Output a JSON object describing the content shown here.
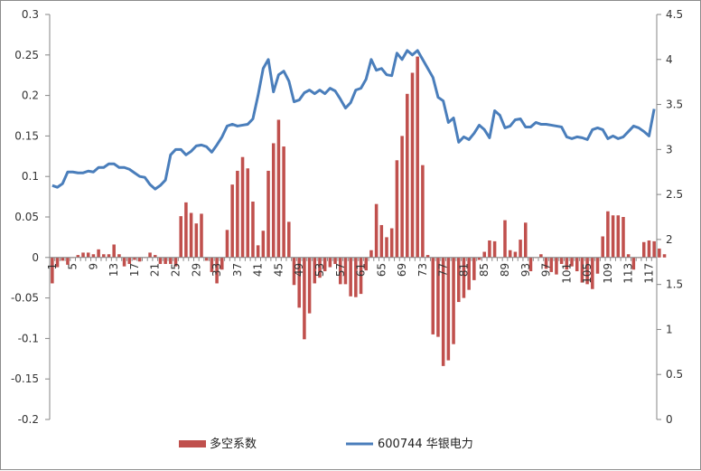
{
  "chart_data": {
    "type": "bar",
    "title": "",
    "xlabel": "",
    "ylabel": "",
    "legend_position": "bottom",
    "grid": false,
    "x_tick_labels": [
      "1",
      "5",
      "9",
      "13",
      "17",
      "21",
      "25",
      "29",
      "33",
      "37",
      "41",
      "45",
      "49",
      "53",
      "57",
      "61",
      "65",
      "69",
      "73",
      "77",
      "81",
      "85",
      "89",
      "93",
      "97",
      "101",
      "105",
      "109",
      "113",
      "117"
    ],
    "x_count": 118,
    "y_left": {
      "min": -0.2,
      "max": 0.3,
      "ticks": [
        "-0.2",
        "-0.15",
        "-0.1",
        "-0.05",
        "0",
        "0.05",
        "0.1",
        "0.15",
        "0.2",
        "0.25",
        "0.3"
      ]
    },
    "y_right": {
      "min": 0,
      "max": 4.5,
      "ticks": [
        "0",
        "0.5",
        "1",
        "1.5",
        "2",
        "2.5",
        "3",
        "3.5",
        "4",
        "4.5"
      ]
    },
    "series": [
      {
        "name": "多空系数",
        "type": "bar",
        "axis": "left",
        "color": "#C0504D",
        "values": [
          -0.032,
          -0.012,
          -0.004,
          -0.009,
          0,
          0.003,
          0.006,
          0.006,
          0.004,
          0.01,
          0.004,
          0.004,
          0.016,
          0.004,
          -0.011,
          -0.008,
          -0.003,
          -0.005,
          0,
          0.006,
          0.003,
          -0.008,
          -0.008,
          -0.008,
          -0.011,
          0.051,
          0.068,
          0.055,
          0.042,
          0.054,
          -0.004,
          -0.018,
          -0.032,
          -0.015,
          0.034,
          0.09,
          0.107,
          0.124,
          0.11,
          0.069,
          0.015,
          0.033,
          0.107,
          0.141,
          0.17,
          0.137,
          0.044,
          -0.034,
          -0.062,
          -0.101,
          -0.069,
          -0.032,
          -0.025,
          -0.017,
          -0.012,
          -0.008,
          -0.033,
          -0.033,
          -0.048,
          -0.049,
          -0.045,
          -0.016,
          0.009,
          0.066,
          0.04,
          0.025,
          0.036,
          0.12,
          0.15,
          0.202,
          0.228,
          0.248,
          0.114,
          0.003,
          -0.095,
          -0.098,
          -0.134,
          -0.127,
          -0.107,
          -0.055,
          -0.05,
          -0.04,
          -0.028,
          -0.003,
          0.007,
          0.021,
          0.02,
          0,
          0.046,
          0.009,
          0.007,
          0.022,
          0.043,
          -0.017,
          0,
          0.004,
          -0.014,
          -0.018,
          -0.021,
          -0.008,
          -0.015,
          -0.011,
          -0.017,
          -0.031,
          -0.033,
          -0.039,
          -0.02,
          0.026,
          0.057,
          0.052,
          0.052,
          0.05,
          0.004,
          -0.015,
          0,
          0.019,
          0.021,
          0.02,
          0.011,
          0.004
        ]
      },
      {
        "name": "600744 华银电力",
        "type": "line",
        "axis": "right",
        "color": "#4A7EBB",
        "values": [
          2.6,
          2.58,
          2.62,
          2.75,
          2.75,
          2.74,
          2.74,
          2.76,
          2.75,
          2.8,
          2.8,
          2.84,
          2.84,
          2.8,
          2.8,
          2.78,
          2.74,
          2.7,
          2.69,
          2.61,
          2.56,
          2.6,
          2.66,
          2.94,
          3.0,
          3.0,
          2.94,
          2.98,
          3.04,
          3.05,
          3.03,
          2.97,
          3.05,
          3.14,
          3.26,
          3.28,
          3.26,
          3.27,
          3.28,
          3.34,
          3.6,
          3.9,
          4.0,
          3.64,
          3.83,
          3.87,
          3.76,
          3.53,
          3.55,
          3.63,
          3.66,
          3.62,
          3.66,
          3.62,
          3.68,
          3.65,
          3.56,
          3.46,
          3.52,
          3.66,
          3.68,
          3.78,
          4.0,
          3.88,
          3.9,
          3.83,
          3.82,
          4.07,
          4.0,
          4.1,
          4.05,
          4.1,
          4.0,
          3.9,
          3.8,
          3.58,
          3.54,
          3.3,
          3.35,
          3.08,
          3.14,
          3.11,
          3.18,
          3.27,
          3.22,
          3.13,
          3.43,
          3.38,
          3.24,
          3.26,
          3.33,
          3.34,
          3.25,
          3.25,
          3.3,
          3.28,
          3.28,
          3.27,
          3.26,
          3.25,
          3.14,
          3.12,
          3.14,
          3.13,
          3.11,
          3.22,
          3.24,
          3.22,
          3.12,
          3.15,
          3.12,
          3.14,
          3.2,
          3.26,
          3.24,
          3.2,
          3.15,
          3.45
        ]
      }
    ]
  }
}
